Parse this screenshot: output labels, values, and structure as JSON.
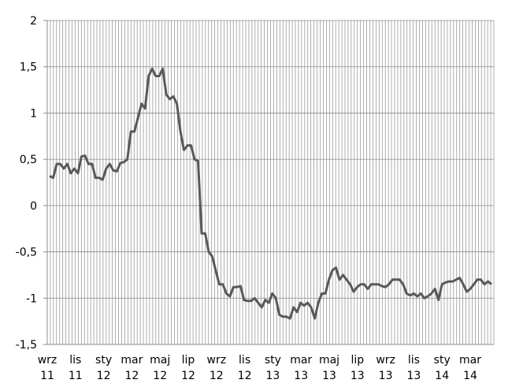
{
  "chart_data": {
    "type": "line",
    "title": "",
    "xlabel": "",
    "ylabel": "",
    "ylim": [
      -1.5,
      2
    ],
    "y_ticks": [
      {
        "value": 2,
        "label": "2"
      },
      {
        "value": 1.5,
        "label": "1,5"
      },
      {
        "value": 1,
        "label": "1"
      },
      {
        "value": 0.5,
        "label": "0,5"
      },
      {
        "value": 0,
        "label": "0"
      },
      {
        "value": -0.5,
        "label": "-0,5"
      },
      {
        "value": -1,
        "label": "-1"
      },
      {
        "value": -1.5,
        "label": "-1,5"
      }
    ],
    "x_ticks": [
      {
        "label": "wrz",
        "year": "11"
      },
      {
        "label": "lis",
        "year": "11"
      },
      {
        "label": "sty",
        "year": "12"
      },
      {
        "label": "mar",
        "year": "12"
      },
      {
        "label": "maj",
        "year": "12"
      },
      {
        "label": "lip",
        "year": "12"
      },
      {
        "label": "wrz",
        "year": "12"
      },
      {
        "label": "lis",
        "year": "12"
      },
      {
        "label": "sty",
        "year": "13"
      },
      {
        "label": "mar",
        "year": "13"
      },
      {
        "label": "maj",
        "year": "13"
      },
      {
        "label": "lip",
        "year": "13"
      },
      {
        "label": "wrz",
        "year": "13"
      },
      {
        "label": "lis",
        "year": "13"
      },
      {
        "label": "sty",
        "year": "14"
      },
      {
        "label": "mar",
        "year": "14"
      }
    ],
    "grid": "vertical",
    "legend": "none",
    "series": [
      {
        "color": "#595959",
        "values": [
          0.32,
          0.3,
          0.45,
          0.45,
          0.4,
          0.45,
          0.35,
          0.4,
          0.35,
          0.53,
          0.54,
          0.45,
          0.45,
          0.3,
          0.3,
          0.28,
          0.4,
          0.45,
          0.38,
          0.37,
          0.46,
          0.47,
          0.5,
          0.8,
          0.8,
          0.95,
          1.1,
          1.05,
          1.4,
          1.48,
          1.4,
          1.4,
          1.48,
          1.2,
          1.15,
          1.18,
          1.1,
          0.8,
          0.6,
          0.65,
          0.65,
          0.5,
          0.48,
          -0.3,
          -0.3,
          -0.5,
          -0.55,
          -0.7,
          -0.85,
          -0.85,
          -0.95,
          -0.98,
          -0.88,
          -0.88,
          -0.87,
          -1.02,
          -1.03,
          -1.03,
          -1.0,
          -1.05,
          -1.1,
          -1.02,
          -1.05,
          -0.95,
          -1.0,
          -1.18,
          -1.2,
          -1.2,
          -1.22,
          -1.1,
          -1.15,
          -1.05,
          -1.08,
          -1.05,
          -1.1,
          -1.22,
          -1.05,
          -0.95,
          -0.95,
          -0.8,
          -0.7,
          -0.67,
          -0.8,
          -0.75,
          -0.8,
          -0.85,
          -0.93,
          -0.88,
          -0.85,
          -0.85,
          -0.9,
          -0.85,
          -0.85,
          -0.85,
          -0.87,
          -0.88,
          -0.85,
          -0.8,
          -0.8,
          -0.8,
          -0.85,
          -0.95,
          -0.97,
          -0.95,
          -0.98,
          -0.95,
          -1.0,
          -0.98,
          -0.95,
          -0.9,
          -1.02,
          -0.85,
          -0.83,
          -0.82,
          -0.82,
          -0.8,
          -0.78,
          -0.85,
          -0.93,
          -0.9,
          -0.85,
          -0.8,
          -0.8,
          -0.85,
          -0.82,
          -0.85
        ]
      }
    ]
  }
}
